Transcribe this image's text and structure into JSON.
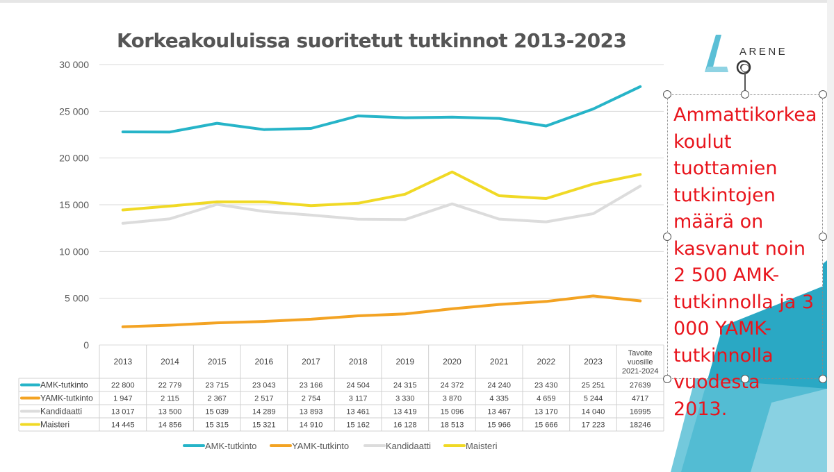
{
  "title": "Korkeakouluissa suoritetut tutkinnot 2013-2023",
  "logo_text": "ARENE",
  "annotation": "Ammattikorkea koulut tuottamien tutkintojen määrä on kasvanut noin 2 500 AMK-tutkinnolla ja 3 000 YAMK-tutkinnolla vuodesta 2013.",
  "chart_data": {
    "type": "line",
    "title": "Korkeakouluissa suoritetut tutkinnot 2013-2023",
    "categories": [
      "2013",
      "2014",
      "2015",
      "2016",
      "2017",
      "2018",
      "2019",
      "2020",
      "2021",
      "2022",
      "2023",
      "Tavoite vuosille 2021-2024"
    ],
    "category_lines": [
      [
        "2013"
      ],
      [
        "2014"
      ],
      [
        "2015"
      ],
      [
        "2016"
      ],
      [
        "2017"
      ],
      [
        "2018"
      ],
      [
        "2019"
      ],
      [
        "2020"
      ],
      [
        "2021"
      ],
      [
        "2022"
      ],
      [
        "2023"
      ],
      [
        "Tavoite",
        "vuosille",
        "2021-2024"
      ]
    ],
    "ylim": [
      0,
      30000
    ],
    "yticks": [
      0,
      5000,
      10000,
      15000,
      20000,
      25000,
      30000
    ],
    "ytick_labels": [
      "0",
      "5 000",
      "10 000",
      "15 000",
      "20 000",
      "25 000",
      "30 000"
    ],
    "grid": true,
    "legend_position": "bottom",
    "data_table": true,
    "series": [
      {
        "name": "AMK-tutkinto",
        "color": "#26b4c8",
        "values": [
          22800,
          22779,
          23715,
          23043,
          23166,
          24504,
          24315,
          24372,
          24240,
          23430,
          25251,
          27639
        ],
        "labels": [
          "22 800",
          "22 779",
          "23 715",
          "23 043",
          "23 166",
          "24 504",
          "24 315",
          "24 372",
          "24 240",
          "23 430",
          "25 251",
          "27639"
        ]
      },
      {
        "name": "YAMK-tutkinto",
        "color": "#f3a323",
        "values": [
          1947,
          2115,
          2367,
          2517,
          2754,
          3117,
          3330,
          3870,
          4335,
          4659,
          5244,
          4717
        ],
        "labels": [
          "1 947",
          "2 115",
          "2 367",
          "2 517",
          "2 754",
          "3 117",
          "3 330",
          "3 870",
          "4 335",
          "4 659",
          "5 244",
          "4717"
        ]
      },
      {
        "name": "Kandidaatti",
        "color": "#dcdcdc",
        "values": [
          13017,
          13500,
          15039,
          14289,
          13893,
          13461,
          13419,
          15096,
          13467,
          13170,
          14040,
          16995
        ],
        "labels": [
          "13 017",
          "13 500",
          "15 039",
          "14 289",
          "13 893",
          "13 461",
          "13 419",
          "15 096",
          "13 467",
          "13 170",
          "14 040",
          "16995"
        ]
      },
      {
        "name": "Maisteri",
        "color": "#f0d925",
        "values": [
          14445,
          14856,
          15315,
          15321,
          14910,
          15162,
          16128,
          18513,
          15966,
          15666,
          17223,
          18246
        ],
        "labels": [
          "14 445",
          "14 856",
          "15 315",
          "15 321",
          "14 910",
          "15 162",
          "16 128",
          "18 513",
          "15 966",
          "15 666",
          "17 223",
          "18246"
        ]
      }
    ]
  }
}
